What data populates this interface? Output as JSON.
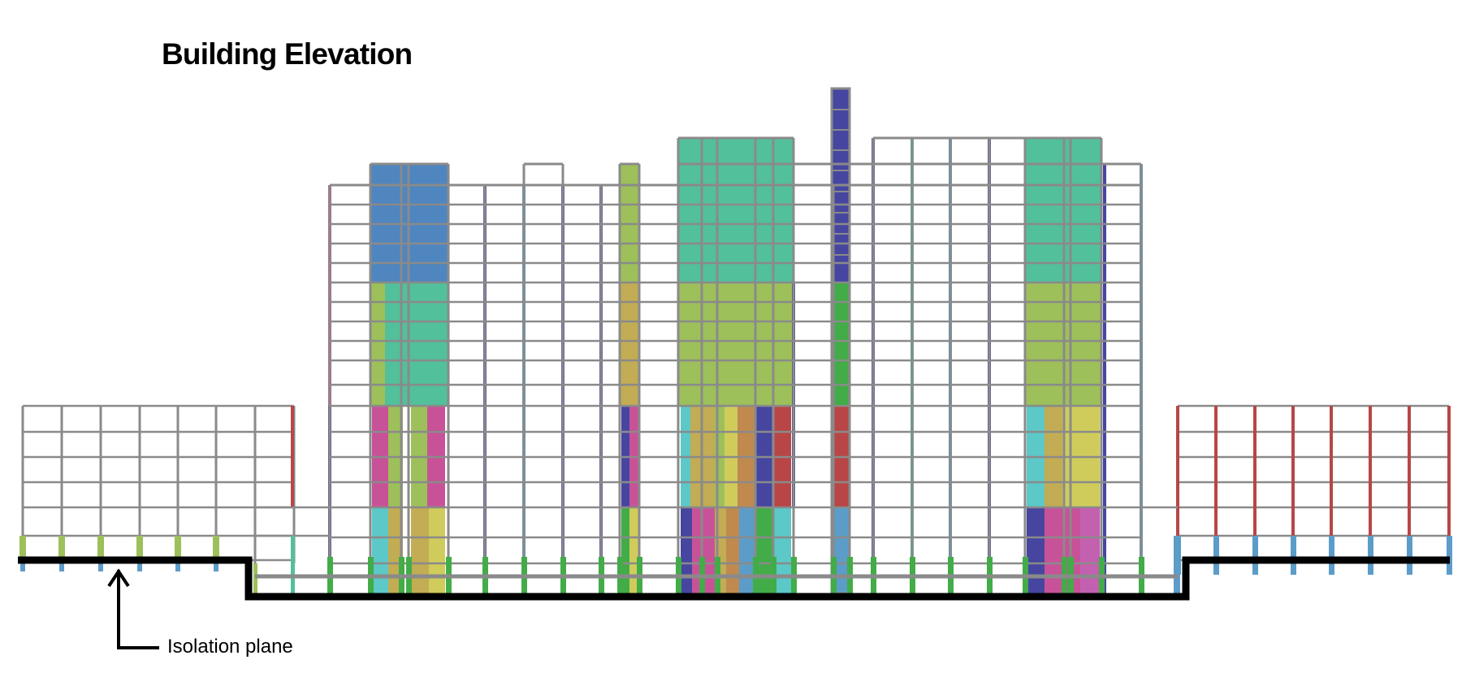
{
  "title": "Building Elevation",
  "callout": {
    "label": "Isolation plane"
  },
  "palette": {
    "frame": "#8a8a8a",
    "plane": "#000000",
    "blue": "#4f86bf",
    "teal": "#52c09a",
    "lime": "#9dc05a",
    "magenta": "#c85298",
    "olive": "#c2ac54",
    "yellow": "#d0cc5c",
    "cyan": "#5cc8c8",
    "navy": "#4646a0",
    "green": "#42ac48",
    "red": "#b84646",
    "pink": "#c460b0",
    "orange": "#c08a4e",
    "steel": "#5c9cc8"
  }
}
